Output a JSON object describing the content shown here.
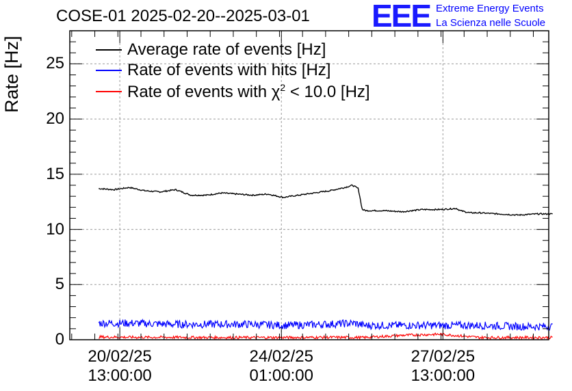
{
  "chart_data": {
    "type": "line",
    "title": "COSE-01 2025-02-20--2025-03-01",
    "xlabel": "",
    "ylabel": "Rate [Hz]",
    "ylim": [
      0,
      28
    ],
    "yticks": [
      0,
      5,
      10,
      15,
      20,
      25
    ],
    "xtick_labels": [
      {
        "date": "20/02/25",
        "time": "13:00:00"
      },
      {
        "date": "24/02/25",
        "time": "01:00:00"
      },
      {
        "date": "27/02/25",
        "time": "13:00:00"
      }
    ],
    "xtick_hours": [
      13,
      97,
      181
    ],
    "x_hours_range": [
      -13,
      236
    ],
    "x_unit": "hours since 2025-02-20 00:00",
    "grid": true,
    "legend_position": "top-left",
    "series": [
      {
        "name": "Average rate of events [Hz]",
        "color": "#000000",
        "x": [
          2,
          10,
          18,
          26,
          34,
          42,
          50,
          58,
          66,
          74,
          82,
          90,
          98,
          106,
          114,
          122,
          130,
          134,
          137,
          139,
          141,
          150,
          160,
          170,
          180,
          188,
          190,
          195,
          200,
          210,
          220,
          230,
          238
        ],
        "y": [
          13.7,
          13.6,
          13.8,
          13.5,
          13.4,
          13.6,
          13.1,
          13.1,
          13.3,
          13.2,
          13.1,
          13.2,
          12.9,
          13.1,
          13.3,
          13.5,
          13.8,
          14.0,
          13.7,
          11.8,
          11.7,
          11.7,
          11.6,
          11.8,
          11.8,
          11.9,
          11.7,
          11.5,
          11.5,
          11.4,
          11.3,
          11.4,
          11.4
        ]
      },
      {
        "name": "Rate of events with hits [Hz]",
        "color": "#0000ff",
        "x": [
          2,
          20,
          40,
          60,
          80,
          100,
          120,
          135,
          140,
          160,
          180,
          200,
          220,
          238
        ],
        "y": [
          1.5,
          1.5,
          1.4,
          1.4,
          1.4,
          1.3,
          1.4,
          1.5,
          1.3,
          1.3,
          1.3,
          1.3,
          1.2,
          1.2
        ],
        "band": 0.35
      },
      {
        "name": "Rate of events with χ2 < 10.0 [Hz]",
        "color": "#ff0000",
        "x": [
          2,
          20,
          40,
          60,
          80,
          100,
          120,
          140,
          150,
          160,
          170,
          180,
          190,
          200,
          220,
          238
        ],
        "y": [
          0.25,
          0.22,
          0.22,
          0.2,
          0.2,
          0.2,
          0.22,
          0.2,
          0.3,
          0.4,
          0.45,
          0.5,
          0.35,
          0.2,
          0.2,
          0.2
        ],
        "band": 0.12
      }
    ]
  },
  "legend": {
    "avg_label": "Average rate of events [Hz]",
    "hits_label": "Rate of events with hits [Hz]",
    "chi_label_pre": "Rate of events with ",
    "chi_symbol": "χ",
    "chi_sup": "2",
    "chi_label_post": " < 10.0 [Hz]"
  },
  "logo": {
    "mark": "EEE",
    "line1": "Extreme Energy Events",
    "line2": "La Scienza nelle Scuole"
  }
}
